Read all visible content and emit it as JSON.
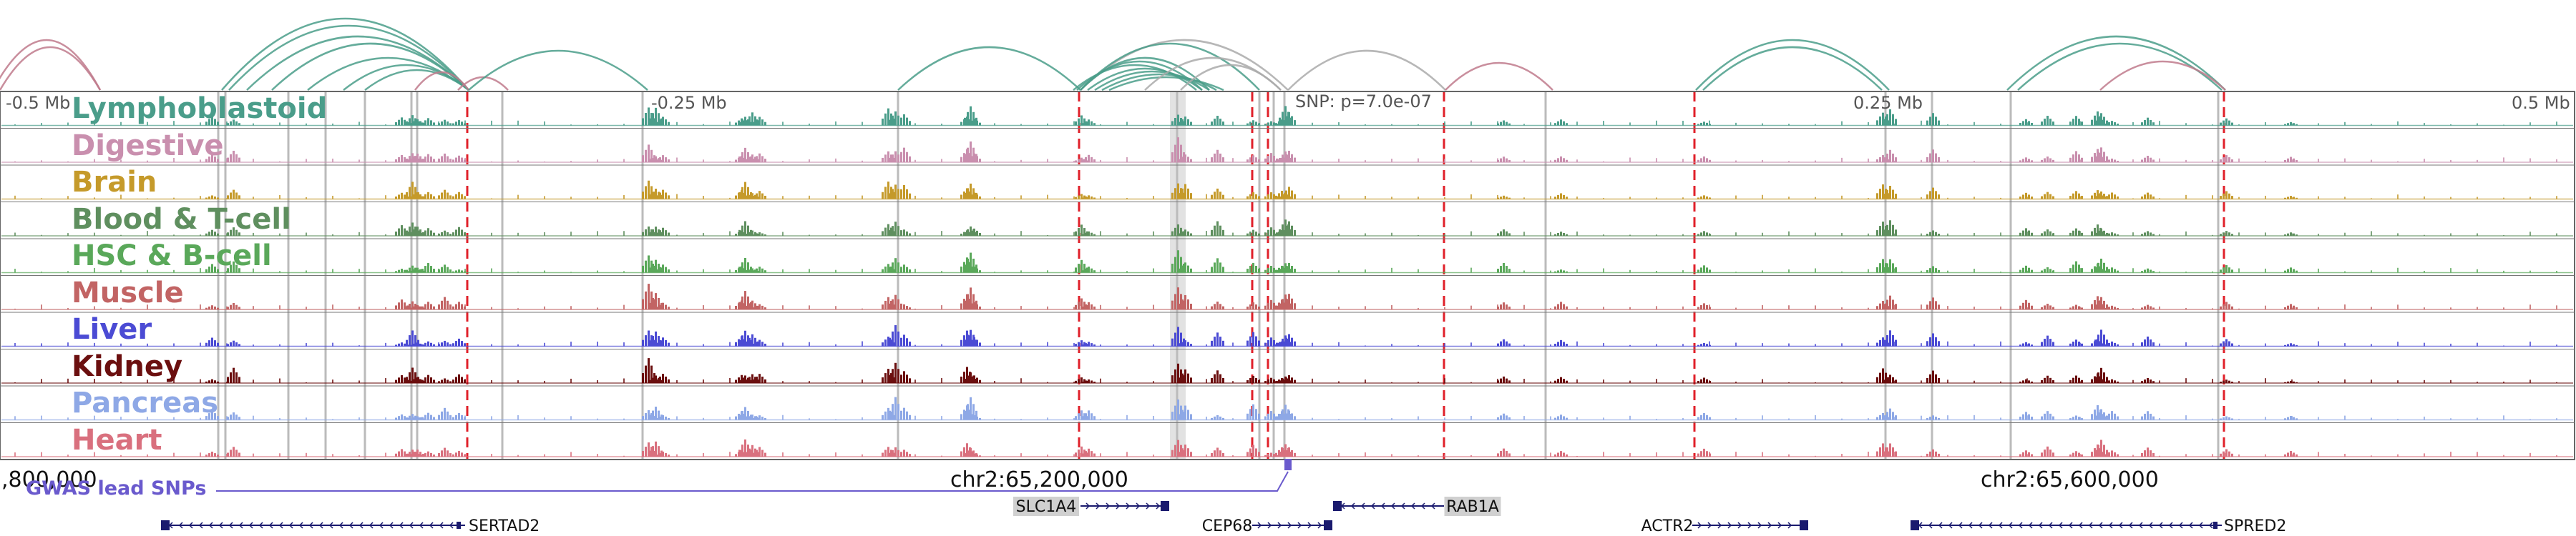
{
  "tracks": [
    {
      "label": "Lymphoblastoid",
      "color": "#4a9d8a"
    },
    {
      "label": "Digestive",
      "color": "#c98fae"
    },
    {
      "label": "Brain",
      "color": "#c59a2a"
    },
    {
      "label": "Blood & T-cell",
      "color": "#5f8f5f"
    },
    {
      "label": "HSC & B-cell",
      "color": "#5aa85a"
    },
    {
      "label": "Muscle",
      "color": "#c26464"
    },
    {
      "label": "Liver",
      "color": "#4b4bd4"
    },
    {
      "label": "Kidney",
      "color": "#6b0f0f"
    },
    {
      "label": "Pancreas",
      "color": "#8ea8e6"
    },
    {
      "label": "Heart",
      "color": "#d9707e"
    }
  ],
  "position_labels": {
    "minus_half": "-0.5 Mb",
    "minus_quarter": "-0.25 Mb",
    "snp": "SNP: p=7.0e-07",
    "plus_quarter": "0.25 Mb",
    "plus_half": "0.5 Mb"
  },
  "coordinates": {
    "left": ",800,000",
    "center": "chr2:65,200,000",
    "right": "chr2:65,600,000"
  },
  "gwas": {
    "label": "GWAS lead SNPs",
    "color": "#6a5acd"
  },
  "genes": [
    {
      "name": "SERTAD2",
      "strand": "-",
      "highlight": false
    },
    {
      "name": "SLC1A4",
      "strand": "+",
      "highlight": true
    },
    {
      "name": "CEP68",
      "strand": "+",
      "highlight": false
    },
    {
      "name": "RAB1A",
      "strand": "-",
      "highlight": true
    },
    {
      "name": "ACTR2",
      "strand": "+",
      "highlight": false
    },
    {
      "name": "SPRED2",
      "strand": "-",
      "highlight": false
    }
  ],
  "colors": {
    "loop_green": "#4a9d8a",
    "loop_pink": "#c07a8c",
    "loop_gray": "#aaaaaa",
    "red_marker": "#e0202a",
    "gray_marker": "#bbbbbb",
    "gene_block": "#1a1a6e",
    "gene_highlight": "#d0d0d0"
  }
}
